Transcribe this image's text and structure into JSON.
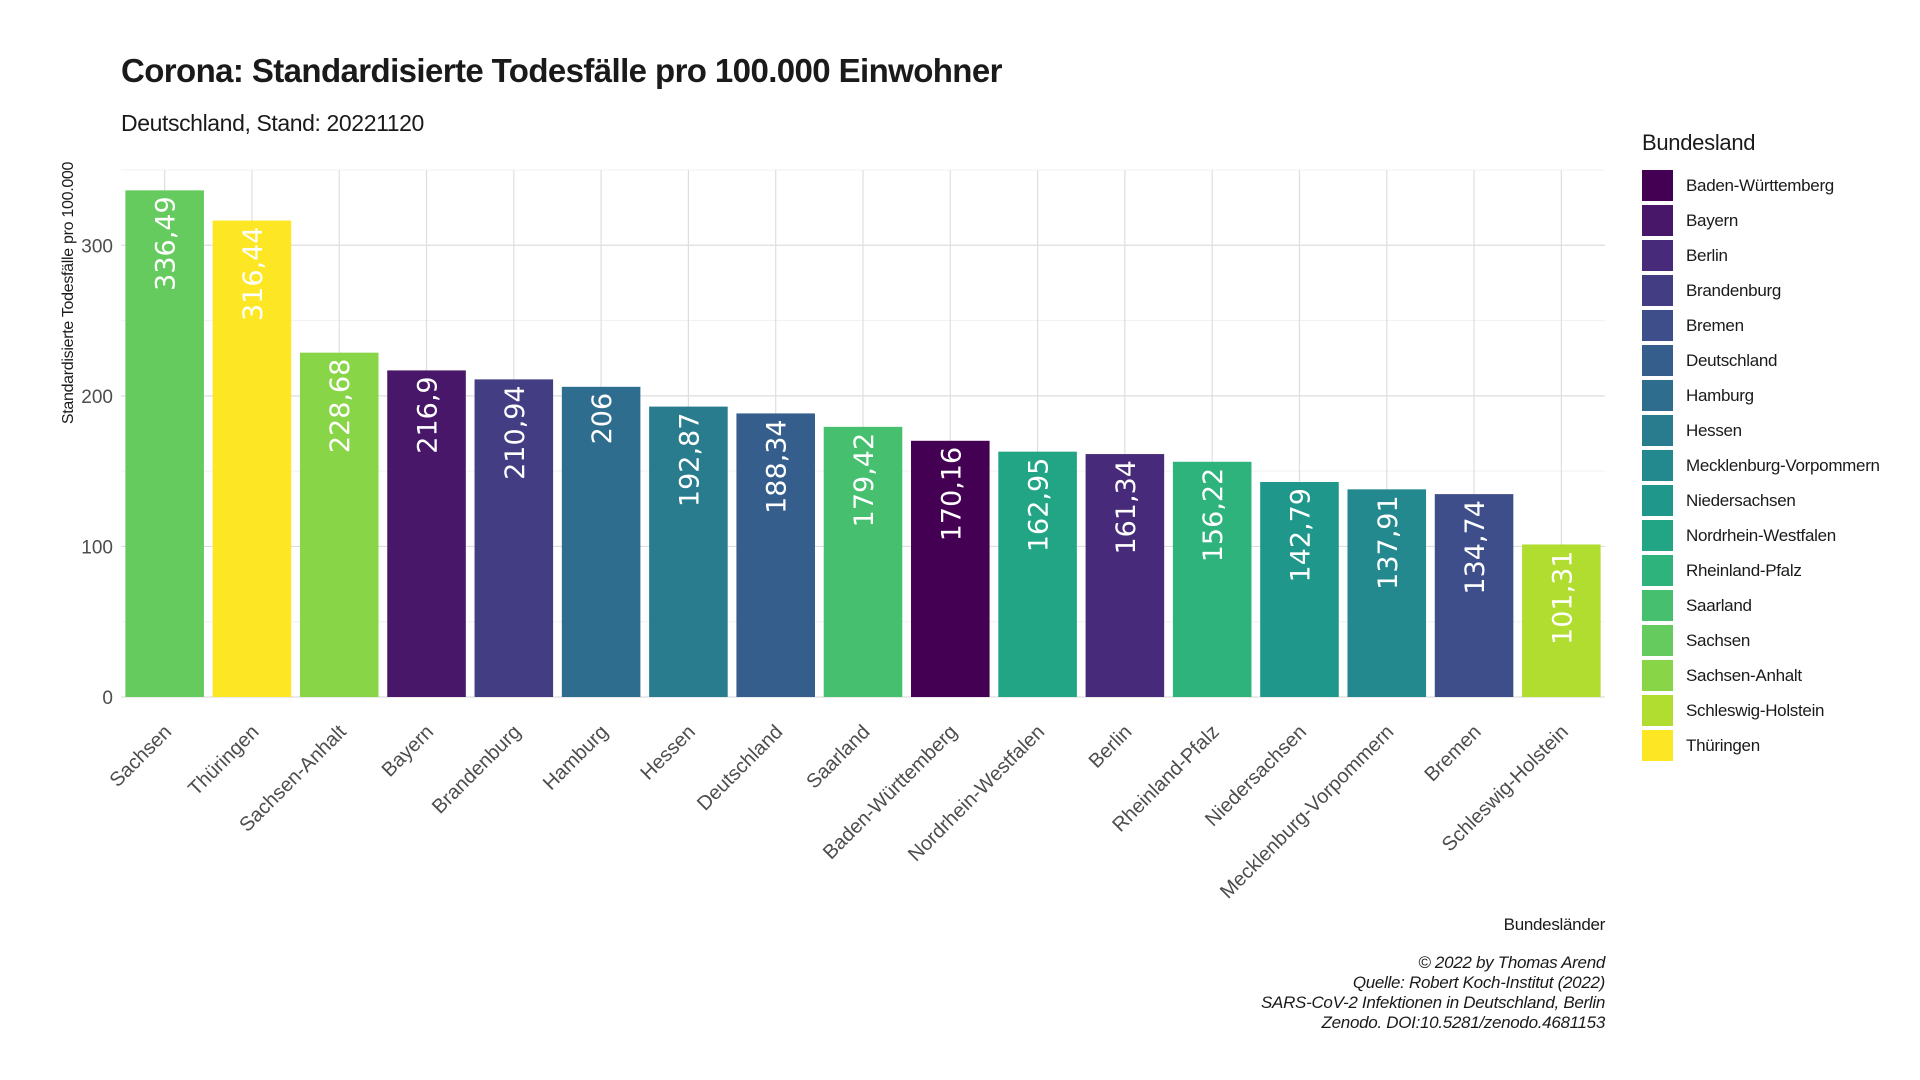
{
  "chart_data": {
    "type": "bar",
    "title": "Corona: Standardisierte Todesfälle pro 100.000 Einwohner",
    "subtitle": "Deutschland, Stand: 20221120",
    "xlabel": "Bundesländer",
    "ylabel": "Standardisierte Todesfälle pro 100.000",
    "ylim": [
      0,
      350
    ],
    "yticks": [
      0,
      100,
      200,
      300
    ],
    "grid": true,
    "legend_title": "Bundesland",
    "legend_position": "right",
    "categories": [
      "Sachsen",
      "Thüringen",
      "Sachsen-Anhalt",
      "Bayern",
      "Brandenburg",
      "Hamburg",
      "Hessen",
      "Deutschland",
      "Saarland",
      "Baden-Württemberg",
      "Nordrhein-Westfalen",
      "Berlin",
      "Rheinland-Pfalz",
      "Niedersachsen",
      "Mecklenburg-Vorpommern",
      "Bremen",
      "Schleswig-Holstein"
    ],
    "values": [
      336.49,
      316.44,
      228.68,
      216.9,
      210.94,
      206,
      192.87,
      188.34,
      179.42,
      170.16,
      162.95,
      161.34,
      156.22,
      142.79,
      137.91,
      134.74,
      101.31
    ],
    "value_labels": [
      "336,49",
      "316,44",
      "228,68",
      "216,9",
      "210,94",
      "206",
      "192,87",
      "188,34",
      "179,42",
      "170,16",
      "162,95",
      "161,34",
      "156,22",
      "142,79",
      "137,91",
      "134,74",
      "101,31"
    ],
    "legend": [
      {
        "name": "Baden-Württemberg",
        "color": "#440154"
      },
      {
        "name": "Bayern",
        "color": "#481769"
      },
      {
        "name": "Berlin",
        "color": "#472A7A"
      },
      {
        "name": "Brandenburg",
        "color": "#433D84"
      },
      {
        "name": "Bremen",
        "color": "#3D4E8A"
      },
      {
        "name": "Deutschland",
        "color": "#355E8D"
      },
      {
        "name": "Hamburg",
        "color": "#2E6D8E"
      },
      {
        "name": "Hessen",
        "color": "#297B8E"
      },
      {
        "name": "Mecklenburg-Vorpommern",
        "color": "#23898E"
      },
      {
        "name": "Niedersachsen",
        "color": "#1F978B"
      },
      {
        "name": "Nordrhein-Westfalen",
        "color": "#21A585"
      },
      {
        "name": "Rheinland-Pfalz",
        "color": "#2EB37C"
      },
      {
        "name": "Saarland",
        "color": "#46C06F"
      },
      {
        "name": "Sachsen",
        "color": "#65CB5E"
      },
      {
        "name": "Sachsen-Anhalt",
        "color": "#89D548"
      },
      {
        "name": "Schleswig-Holstein",
        "color": "#B0DD2F"
      },
      {
        "name": "Thüringen",
        "color": "#FDE725"
      }
    ]
  },
  "caption": [
    "© 2022 by Thomas Arend",
    "Quelle: Robert Koch-Institut (2022)",
    "SARS-CoV-2 Infektionen in Deutschland, Berlin",
    "Zenodo. DOI:10.5281/zenodo.4681153"
  ]
}
